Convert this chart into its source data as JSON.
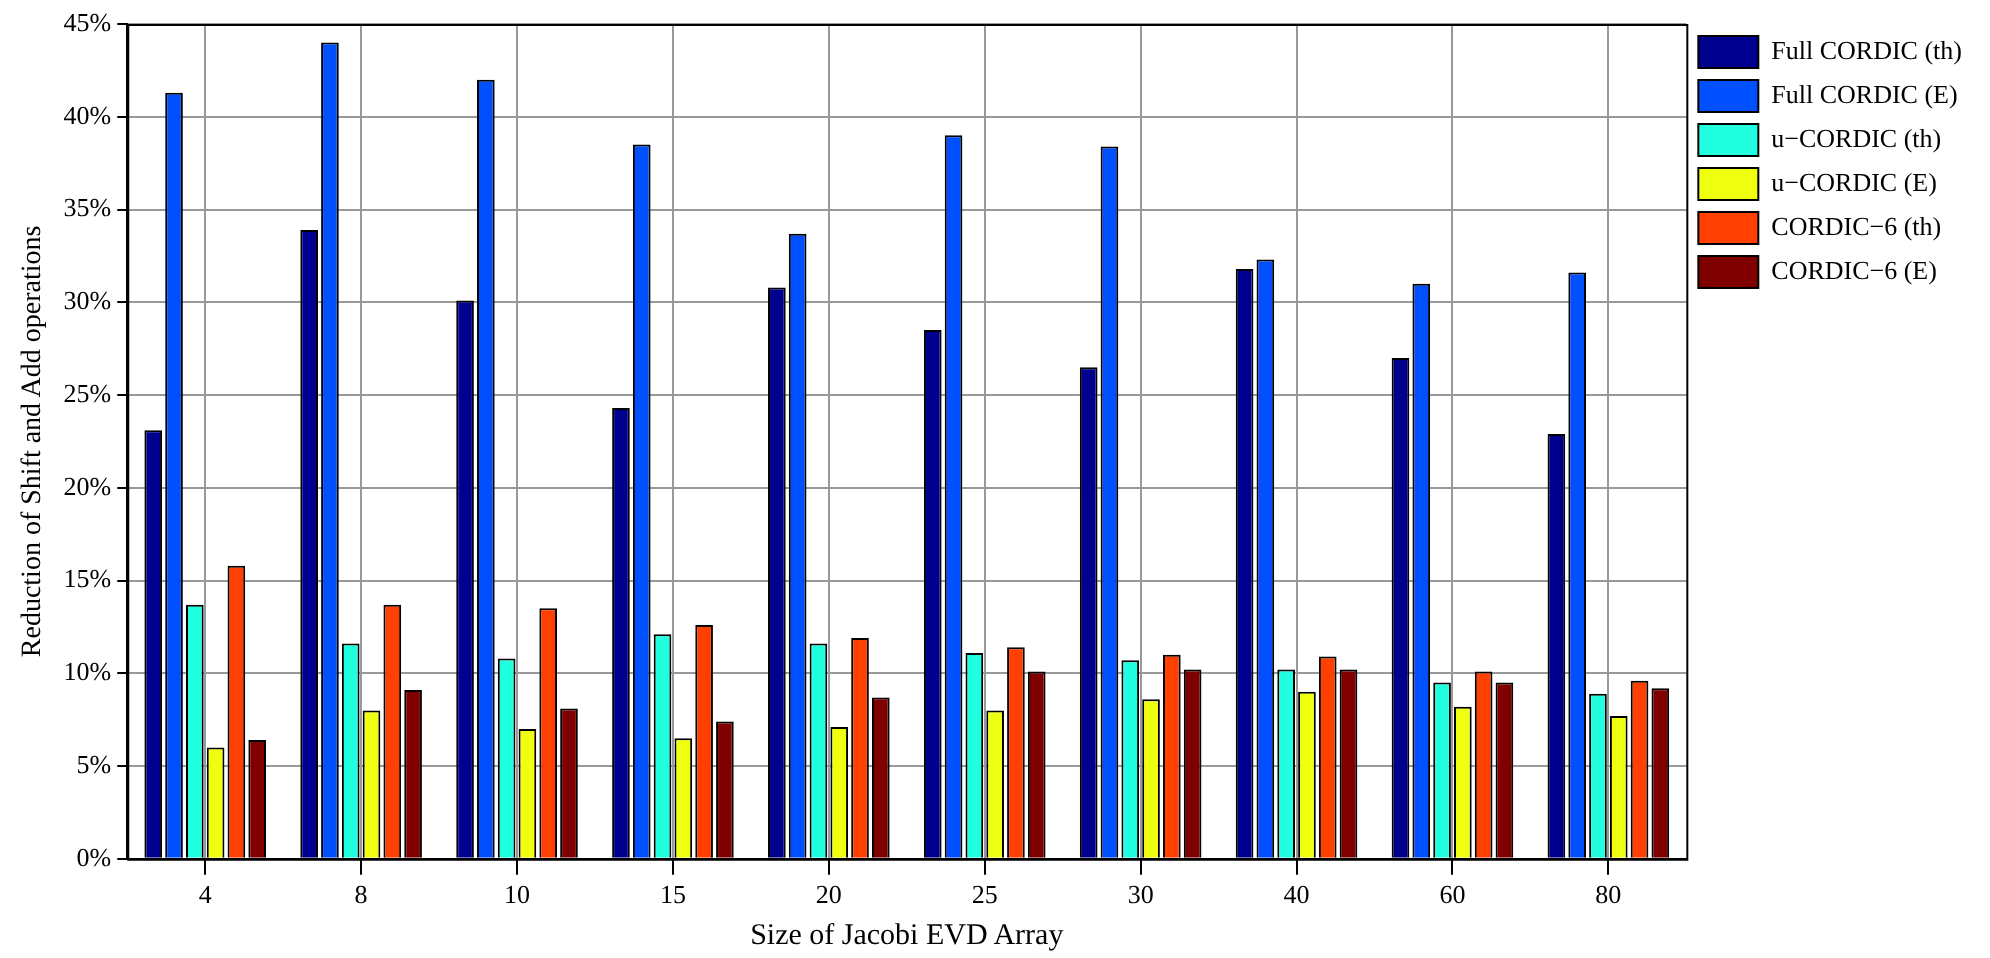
{
  "chart_data": {
    "type": "bar",
    "xlabel": "Size of Jacobi EVD Array",
    "ylabel": "Reduction of Shift and Add operations",
    "categories": [
      "4",
      "8",
      "10",
      "15",
      "20",
      "25",
      "30",
      "40",
      "60",
      "80"
    ],
    "series": [
      {
        "name": "Full CORDIC (th)",
        "color": "#00008f",
        "values": [
          23.1,
          33.9,
          30.1,
          24.3,
          30.8,
          28.5,
          26.5,
          31.8,
          27.0,
          22.9
        ]
      },
      {
        "name": "Full CORDIC (E)",
        "color": "#0050ff",
        "values": [
          41.3,
          44.0,
          42.0,
          38.5,
          33.7,
          39.0,
          38.4,
          32.3,
          31.0,
          31.6
        ]
      },
      {
        "name": "u−CORDIC (th)",
        "color": "#20ffdf",
        "values": [
          13.7,
          11.6,
          10.8,
          12.1,
          11.6,
          11.1,
          10.7,
          10.2,
          9.5,
          8.9
        ]
      },
      {
        "name": "u−CORDIC (E)",
        "color": "#efff10",
        "values": [
          6.0,
          8.0,
          7.0,
          6.5,
          7.1,
          8.0,
          8.6,
          9.0,
          8.2,
          7.7
        ]
      },
      {
        "name": "CORDIC−6 (th)",
        "color": "#ff4000",
        "values": [
          15.8,
          13.7,
          13.5,
          12.6,
          11.9,
          11.4,
          11.0,
          10.9,
          10.1,
          9.6
        ]
      },
      {
        "name": "CORDIC−6 (E)",
        "color": "#800000",
        "values": [
          6.4,
          9.1,
          8.1,
          7.4,
          8.7,
          10.1,
          10.2,
          10.2,
          9.5,
          9.2
        ]
      }
    ],
    "ylim": [
      0,
      45
    ],
    "yticks": [
      {
        "value": 0,
        "label": "0%"
      },
      {
        "value": 5,
        "label": "5%"
      },
      {
        "value": 10,
        "label": "10%"
      },
      {
        "value": 15,
        "label": "15%"
      },
      {
        "value": 20,
        "label": "20%"
      },
      {
        "value": 25,
        "label": "25%"
      },
      {
        "value": 30,
        "label": "30%"
      },
      {
        "value": 35,
        "label": "35%"
      },
      {
        "value": 40,
        "label": "40%"
      },
      {
        "value": 45,
        "label": "45%"
      }
    ],
    "grid": true,
    "legend": "top right"
  }
}
